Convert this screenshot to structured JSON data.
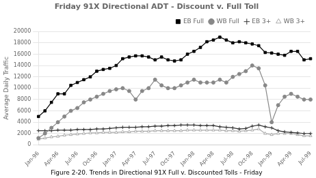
{
  "chart_data": {
    "type": "line",
    "title": "Friday 91X Directional ADT - Discount v. Full Toll",
    "y_label": "Average Daily Traffic",
    "caption": "Figure 2-20. Trends in Directional 91X Full v. Discounted Tolls - Friday",
    "categories": [
      "Jan-96",
      null,
      null,
      "Apr-96",
      null,
      null,
      "Jul-96",
      null,
      null,
      "Oct-96",
      null,
      null,
      "Jan-97",
      null,
      null,
      "Apr-97",
      null,
      null,
      "Jul-97",
      null,
      null,
      "Oct-97",
      null,
      null,
      "Jan-98",
      null,
      null,
      "Apr-98",
      null,
      null,
      "Jul-98",
      null,
      null,
      "Oct-98",
      null,
      null,
      "Jan-99",
      null,
      null,
      "Apr-99",
      null,
      null,
      "Jul-99"
    ],
    "ylim": [
      0,
      20000
    ],
    "yticks": [
      0,
      2000,
      4000,
      6000,
      8000,
      10000,
      12000,
      14000,
      16000,
      18000,
      20000
    ],
    "grid": true,
    "legend": "upper right",
    "series": [
      {
        "name": "EB Full",
        "color": "#000000",
        "marker": "square",
        "values": [
          5000,
          6000,
          7500,
          9000,
          9000,
          10500,
          11000,
          11500,
          12000,
          13000,
          13300,
          13500,
          14000,
          15200,
          15500,
          15700,
          15700,
          15500,
          15000,
          15500,
          15000,
          14800,
          15000,
          16000,
          16500,
          17200,
          18200,
          18500,
          19000,
          18500,
          18000,
          18200,
          18000,
          17800,
          17500,
          16300,
          16200,
          16000,
          15800,
          16500,
          16500,
          15000,
          15200
        ]
      },
      {
        "name": "WB Full",
        "color": "#888888",
        "marker": "circle",
        "values": [
          1200,
          2000,
          3000,
          4000,
          5000,
          6000,
          6500,
          7500,
          8000,
          8500,
          9000,
          9500,
          9800,
          10000,
          9500,
          8000,
          9500,
          10000,
          11500,
          10500,
          10000,
          10000,
          10500,
          11000,
          11500,
          11000,
          11000,
          11000,
          11500,
          11000,
          12000,
          12500,
          13000,
          14000,
          13500,
          10500,
          4000,
          7000,
          8500,
          9000,
          8500,
          8000,
          8000
        ]
      },
      {
        "name": "EB 3+",
        "color": "#333333",
        "marker": "plus",
        "values": [
          2500,
          2500,
          2500,
          2600,
          2600,
          2600,
          2700,
          2700,
          2700,
          2800,
          2800,
          2900,
          3000,
          3100,
          3100,
          3100,
          3200,
          3200,
          3300,
          3300,
          3400,
          3400,
          3500,
          3500,
          3500,
          3400,
          3400,
          3400,
          3200,
          3100,
          3000,
          2800,
          2900,
          3300,
          3500,
          3200,
          3000,
          2500,
          2300,
          2200,
          2100,
          2000,
          2000
        ]
      },
      {
        "name": "WB 3+",
        "color": "#aaaaaa",
        "marker": "triangle",
        "values": [
          1000,
          1200,
          1400,
          1500,
          1700,
          1800,
          1900,
          2000,
          2100,
          2100,
          2200,
          2200,
          2200,
          2300,
          2300,
          2400,
          2400,
          2400,
          2500,
          2500,
          2500,
          2500,
          2500,
          2600,
          2600,
          2600,
          2600,
          2600,
          2600,
          2500,
          2500,
          2400,
          2500,
          2600,
          2800,
          2000,
          1800,
          2000,
          2000,
          2000,
          1800,
          1600,
          1600
        ]
      }
    ]
  }
}
